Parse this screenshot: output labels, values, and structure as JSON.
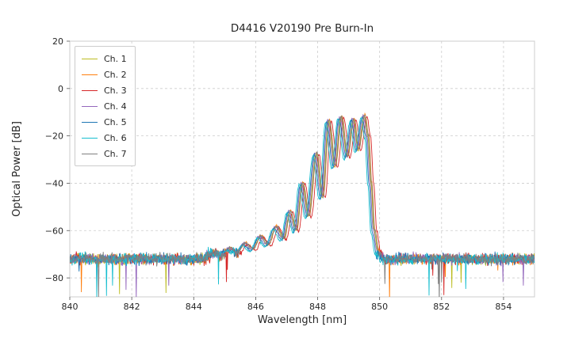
{
  "chart_data": {
    "type": "line",
    "title": "D4416 V20190 Pre Burn-In",
    "xlabel": "Wavelength [nm]",
    "ylabel": "Optical Power [dB]",
    "xlim": [
      840,
      855
    ],
    "ylim": [
      -88,
      20
    ],
    "xticks": [
      840,
      842,
      844,
      846,
      848,
      850,
      852,
      854
    ],
    "yticks": [
      20,
      0,
      -20,
      -40,
      -60,
      -80
    ],
    "grid": true,
    "legend_position": "upper left",
    "noise_floor_db": -72,
    "floor_threshold": -69,
    "floor_noise": 2.3,
    "spike_prob": 0.007,
    "spike_min": 4,
    "spike_range": 14,
    "signal_noise": 0.5,
    "sample_step": 0.015,
    "seed_base": 7,
    "envelope": [
      [
        840.0,
        -72
      ],
      [
        844.3,
        -72
      ],
      [
        844.6,
        -69.5
      ],
      [
        844.9,
        -70.5
      ],
      [
        845.15,
        -67.5
      ],
      [
        845.4,
        -69.5
      ],
      [
        845.65,
        -65.5
      ],
      [
        845.9,
        -68
      ],
      [
        846.15,
        -62.5
      ],
      [
        846.4,
        -66
      ],
      [
        846.65,
        -58.5
      ],
      [
        846.9,
        -63.5
      ],
      [
        847.1,
        -52
      ],
      [
        847.3,
        -60
      ],
      [
        847.5,
        -40
      ],
      [
        847.7,
        -54
      ],
      [
        847.95,
        -27.5
      ],
      [
        848.15,
        -46
      ],
      [
        848.35,
        -13.5
      ],
      [
        848.55,
        -33
      ],
      [
        848.75,
        -12
      ],
      [
        848.95,
        -29
      ],
      [
        849.15,
        -13
      ],
      [
        849.3,
        -26
      ],
      [
        849.5,
        -11.5
      ],
      [
        849.62,
        -20
      ],
      [
        849.72,
        -40
      ],
      [
        849.82,
        -60
      ],
      [
        849.95,
        -69
      ],
      [
        850.1,
        -72
      ],
      [
        855.0,
        -72
      ]
    ],
    "series": [
      {
        "name": "Ch. 1",
        "color": "#bcbd22",
        "dx": 0.0,
        "dy": 0.0
      },
      {
        "name": "Ch. 2",
        "color": "#ff7f0e",
        "dx": 0.03,
        "dy": 0.4
      },
      {
        "name": "Ch. 3",
        "color": "#d62728",
        "dx": 0.09,
        "dy": -0.3
      },
      {
        "name": "Ch. 4",
        "color": "#9467bd",
        "dx": -0.03,
        "dy": 0.2
      },
      {
        "name": "Ch. 5",
        "color": "#1f77b4",
        "dx": -0.06,
        "dy": -0.5
      },
      {
        "name": "Ch. 6",
        "color": "#17becf",
        "dx": -0.1,
        "dy": -0.9
      },
      {
        "name": "Ch. 7",
        "color": "#7f7f7f",
        "dx": 0.02,
        "dy": 0.3
      }
    ],
    "grid_color": "#cccccc",
    "tick_color": "#262626"
  }
}
